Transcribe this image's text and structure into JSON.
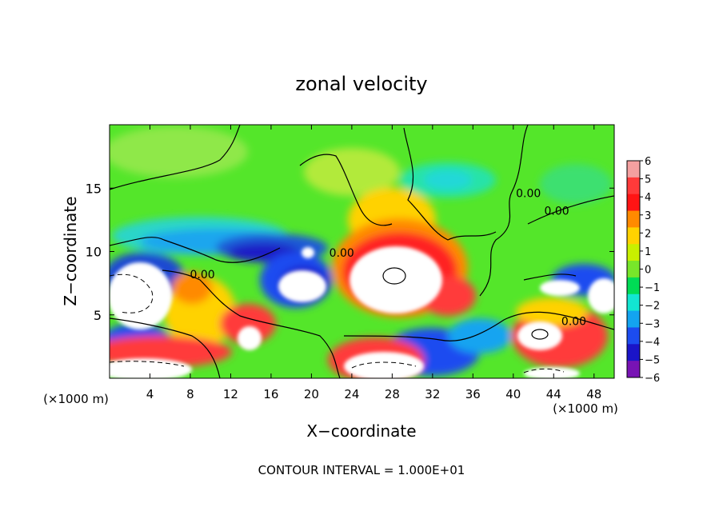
{
  "chart_data": {
    "type": "heatmap",
    "title": "zonal velocity",
    "xlabel": "X−coordinate",
    "ylabel": "Z−coordinate",
    "x_unit": "(×1000 m)",
    "y_unit": "(×1000 m)",
    "xlim": [
      0,
      50
    ],
    "ylim": [
      0,
      20
    ],
    "x_ticks": [
      {
        "v": 4,
        "label": "4"
      },
      {
        "v": 8,
        "label": "8"
      },
      {
        "v": 12,
        "label": "12"
      },
      {
        "v": 16,
        "label": "16"
      },
      {
        "v": 20,
        "label": "20"
      },
      {
        "v": 24,
        "label": "24"
      },
      {
        "v": 28,
        "label": "28"
      },
      {
        "v": 32,
        "label": "32"
      },
      {
        "v": 36,
        "label": "36"
      },
      {
        "v": 40,
        "label": "40"
      },
      {
        "v": 44,
        "label": "44"
      },
      {
        "v": 48,
        "label": "48"
      }
    ],
    "y_ticks": [
      {
        "v": 5,
        "label": "5"
      },
      {
        "v": 10,
        "label": "10"
      },
      {
        "v": 15,
        "label": "15"
      }
    ],
    "colorbar": {
      "min": -6,
      "max": 6,
      "labels": [
        "6",
        "5",
        "4",
        "3",
        "2",
        "1",
        "0",
        "−1",
        "−2",
        "−3",
        "−4",
        "−5",
        "−6"
      ],
      "colors": [
        "#f4a0a0",
        "#ff3a3a",
        "#ff1414",
        "#ff8a00",
        "#ffd200",
        "#c8f000",
        "#78e62a",
        "#00dc55",
        "#12e6d2",
        "#13a4f0",
        "#1c4cf0",
        "#1a14c8",
        "#7813b4"
      ]
    },
    "contour_labels": [
      {
        "x": 9.2,
        "y": 7.9,
        "label": "0.00"
      },
      {
        "x": 23.0,
        "y": 9.6,
        "label": "0.00"
      },
      {
        "x": 41.5,
        "y": 14.3,
        "label": "0.00"
      },
      {
        "x": 44.3,
        "y": 12.9,
        "label": "0.00"
      },
      {
        "x": 46.0,
        "y": 4.2,
        "label": "0.00"
      }
    ],
    "footer": "CONTOUR INTERVAL = 1.000E+01"
  }
}
